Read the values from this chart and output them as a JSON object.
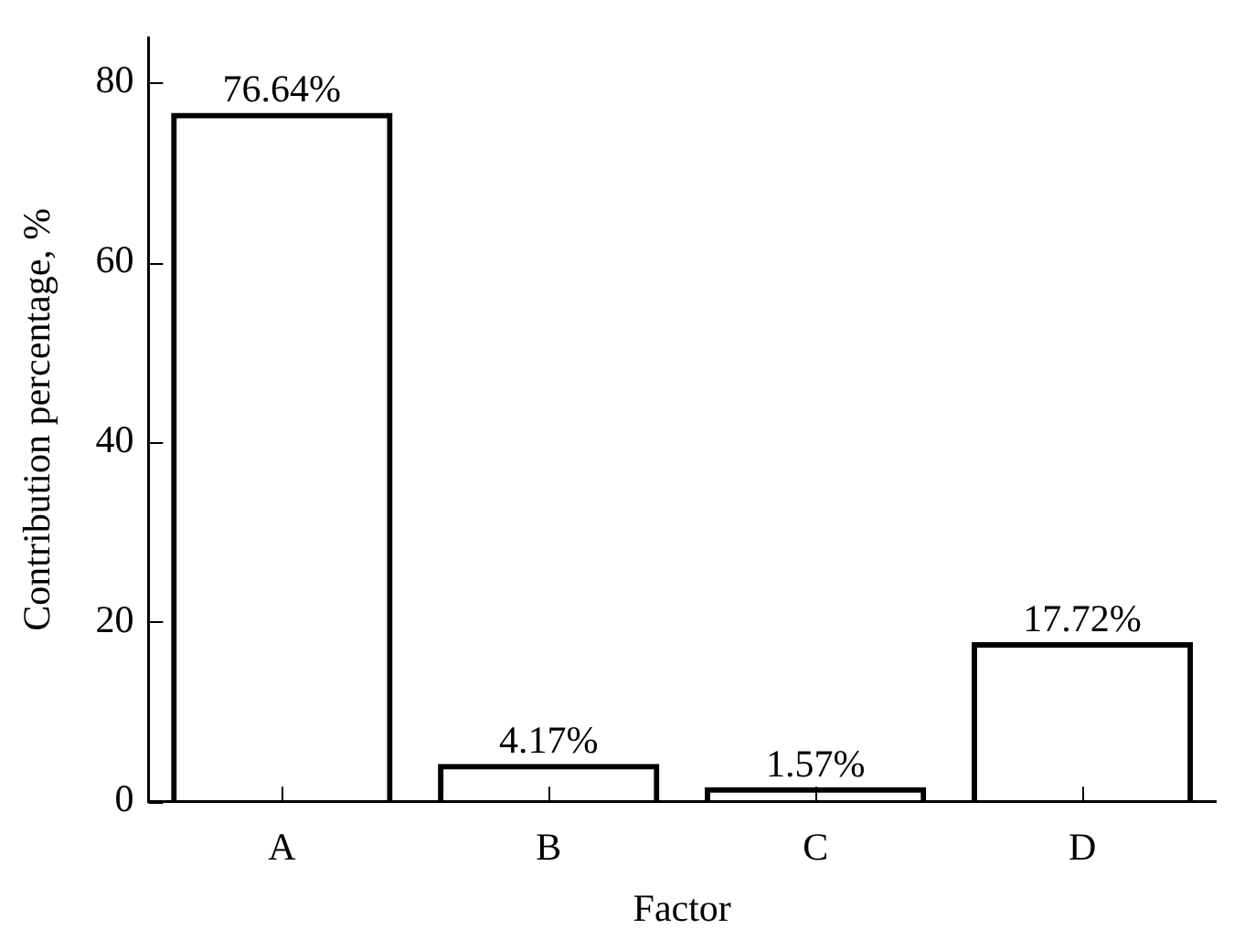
{
  "chart_data": {
    "type": "bar",
    "xlabel": "Factor",
    "ylabel": "Contribution percentage, %",
    "categories": [
      "A",
      "B",
      "C",
      "D"
    ],
    "values": [
      76.64,
      4.17,
      1.57,
      17.72
    ],
    "value_labels": [
      "76.64%",
      "4.17%",
      "1.57%",
      "17.72%"
    ],
    "color": "#000000",
    "ylim": [
      0,
      85
    ],
    "yticks": [
      0,
      20,
      40,
      60,
      80
    ],
    "grid": false,
    "legend": false
  }
}
